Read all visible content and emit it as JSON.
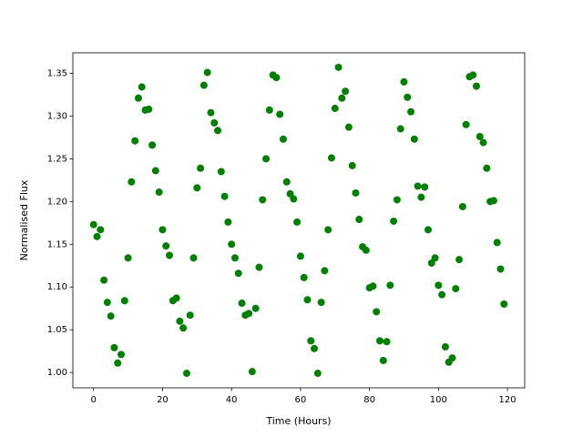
{
  "chart_data": {
    "type": "scatter",
    "xlabel": "Time (Hours)",
    "ylabel": "Normalised Flux",
    "color": "#008000",
    "x": [
      0,
      1,
      2,
      3,
      4,
      5,
      6,
      7,
      8,
      9,
      10,
      11,
      12,
      13,
      14,
      15,
      16,
      17,
      18,
      19,
      20,
      21,
      22,
      23,
      24,
      25,
      26,
      27,
      28,
      29,
      30,
      31,
      32,
      33,
      34,
      35,
      36,
      37,
      38,
      39,
      40,
      41,
      42,
      43,
      44,
      45,
      46,
      47,
      48,
      49,
      50,
      51,
      52,
      53,
      54,
      55,
      56,
      57,
      58,
      59,
      60,
      61,
      62,
      63,
      64,
      65,
      66,
      67,
      68,
      69,
      70,
      71,
      72,
      73,
      74,
      75,
      76,
      77,
      78,
      79,
      80,
      81,
      82,
      83,
      84,
      85,
      86,
      87,
      88,
      89,
      90,
      91,
      92,
      93,
      94,
      95,
      96,
      97,
      98,
      99,
      100,
      101,
      102,
      103,
      104,
      105,
      106,
      107,
      108,
      109,
      110,
      111,
      112,
      113,
      114,
      115,
      116,
      117,
      118,
      119
    ],
    "values": [
      1.173,
      1.159,
      1.167,
      1.108,
      1.082,
      1.066,
      1.029,
      1.011,
      1.021,
      1.084,
      1.134,
      1.223,
      1.271,
      1.321,
      1.334,
      1.307,
      1.308,
      1.266,
      1.236,
      1.211,
      1.167,
      1.148,
      1.137,
      1.084,
      1.087,
      1.06,
      1.052,
      0.999,
      1.067,
      1.134,
      1.216,
      1.239,
      1.336,
      1.351,
      1.304,
      1.292,
      1.283,
      1.235,
      1.206,
      1.176,
      1.15,
      1.134,
      1.116,
      1.081,
      1.067,
      1.069,
      1.001,
      1.075,
      1.123,
      1.202,
      1.25,
      1.307,
      1.348,
      1.345,
      1.302,
      1.273,
      1.223,
      1.209,
      1.203,
      1.176,
      1.136,
      1.111,
      1.085,
      1.037,
      1.028,
      0.999,
      1.082,
      1.119,
      1.167,
      1.251,
      1.309,
      1.357,
      1.321,
      1.329,
      1.287,
      1.242,
      1.21,
      1.179,
      1.147,
      1.143,
      1.099,
      1.101,
      1.071,
      1.037,
      1.014,
      1.036,
      1.102,
      1.177,
      1.202,
      1.285,
      1.34,
      1.322,
      1.305,
      1.273,
      1.218,
      1.205,
      1.217,
      1.167,
      1.128,
      1.134,
      1.102,
      1.091,
      1.03,
      1.012,
      1.017,
      1.098,
      1.132,
      1.194,
      1.29,
      1.346,
      1.348,
      1.335,
      1.276,
      1.269,
      1.239,
      1.2,
      1.201,
      1.152,
      1.121,
      1.08
    ],
    "xlim": [
      -6,
      125
    ],
    "xticks": [
      0,
      20,
      40,
      60,
      80,
      100,
      120
    ],
    "ylim": [
      0.982,
      1.374
    ],
    "yticks": [
      {
        "value": 1.0,
        "label": "1.00"
      },
      1.05,
      {
        "value": 1.1,
        "label": "1.10"
      },
      1.15,
      {
        "value": 1.2,
        "label": "1.20"
      },
      1.25,
      {
        "value": 1.3,
        "label": "1.30"
      },
      1.35
    ]
  }
}
